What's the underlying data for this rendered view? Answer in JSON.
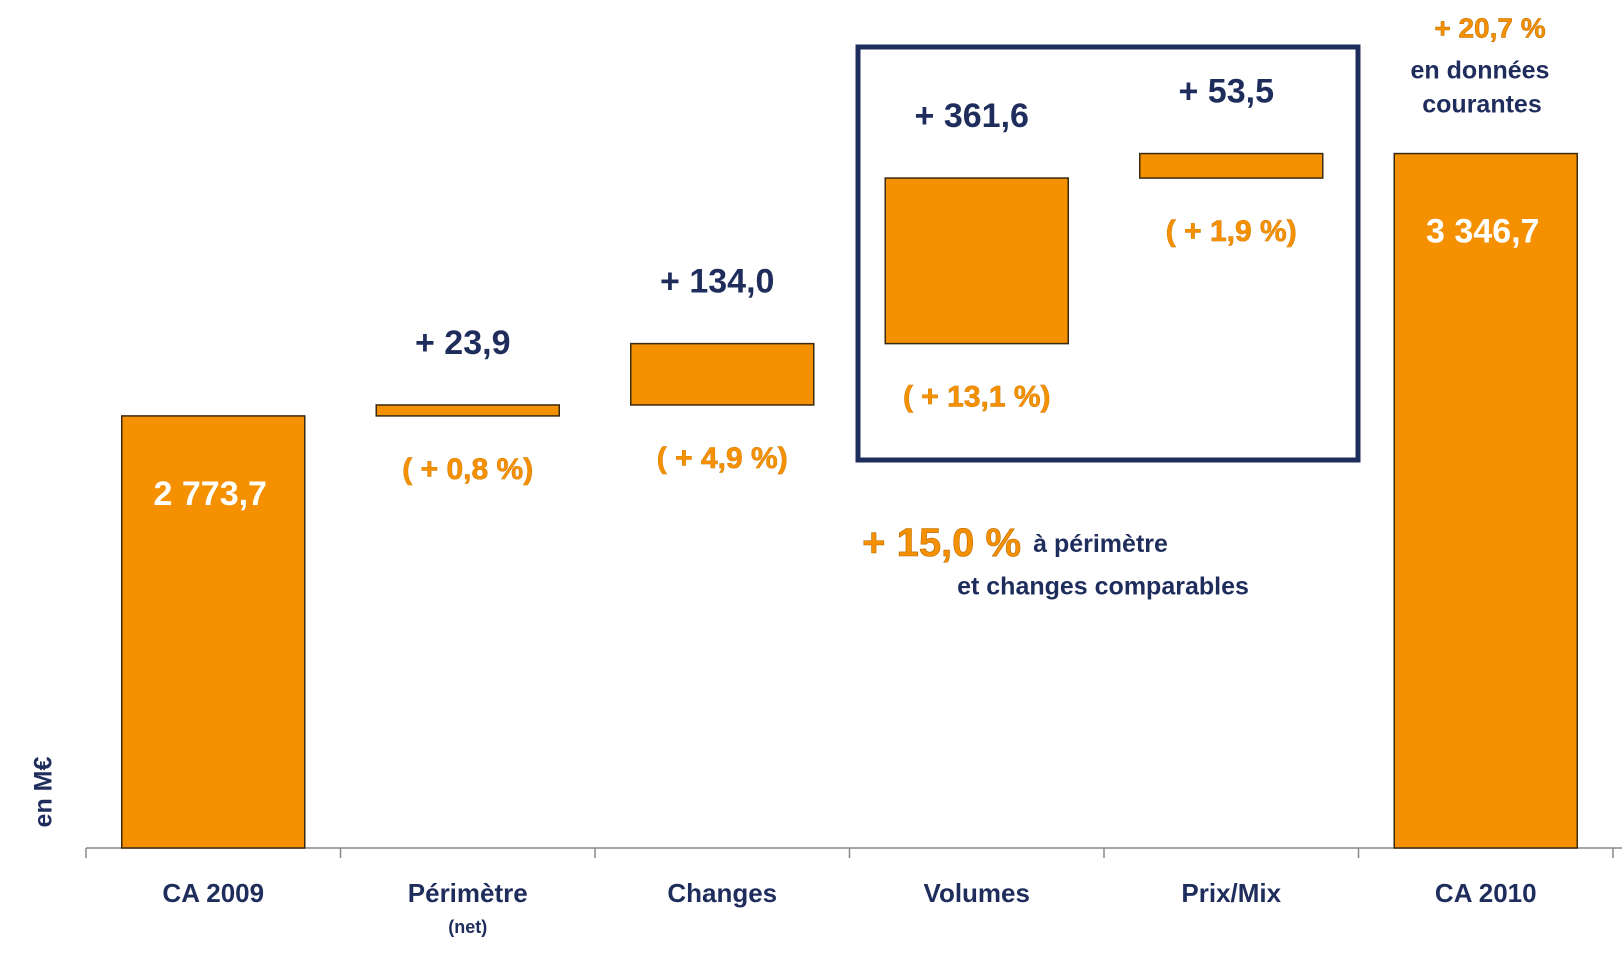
{
  "chart_data": {
    "type": "waterfall",
    "categories": [
      "CA 2009",
      "Périmètre",
      "Changes",
      "Volumes",
      "Prix/Mix",
      "CA 2010"
    ],
    "category_notes": [
      null,
      "(net)",
      null,
      null,
      null,
      null
    ],
    "values": [
      2773.7,
      23.9,
      134.0,
      361.6,
      53.5,
      3346.7
    ],
    "value_labels": [
      "2 773,7",
      "+ 23,9",
      "+ 134,0",
      "+ 361,6",
      "+ 53,5",
      "3 346,7"
    ],
    "measures": [
      "absolute",
      "relative",
      "relative",
      "relative",
      "relative",
      "total"
    ],
    "pct_labels": [
      null,
      "( + 0,8 %)",
      "( + 4,9 %)",
      "( + 13,1 %)",
      "( + 1,9 %)",
      null
    ],
    "color": "#f59100",
    "ylim": [
      1830,
      3420
    ],
    "ylabel": "en M€",
    "annotations": {
      "total_growth": "+ 20,7 %",
      "total_growth_text": [
        "en données",
        "courantes"
      ],
      "organic_growth": "+ 15,0 %",
      "organic_growth_text": [
        "à périmètre",
        "et changes comparables"
      ]
    }
  }
}
